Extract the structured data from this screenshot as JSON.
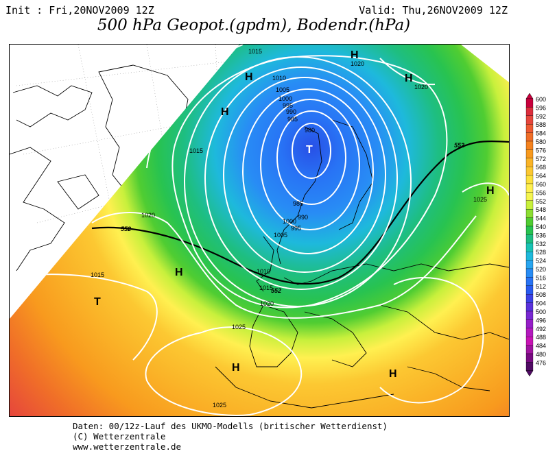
{
  "header": {
    "init": "Init : Fri,20NOV2009 12Z",
    "valid": "Valid: Thu,26NOV2009 12Z",
    "title": "500 hPa Geopot.(gpdm), Bodendr.(hPa)"
  },
  "footer": {
    "line1": "Daten: 00/12z-Lauf des UKMO-Modells (britischer Wetterdienst)",
    "line2": "(C) Wetterzentrale",
    "line3": "www.wetterzentrale.de"
  },
  "legend": {
    "levels": [
      "600",
      "596",
      "592",
      "588",
      "584",
      "580",
      "576",
      "572",
      "568",
      "564",
      "560",
      "556",
      "552",
      "548",
      "544",
      "540",
      "536",
      "532",
      "528",
      "524",
      "520",
      "516",
      "512",
      "508",
      "504",
      "500",
      "496",
      "492",
      "488",
      "484",
      "480",
      "476"
    ],
    "colors": [
      "#c8003c",
      "#dc2d3c",
      "#e6463c",
      "#ee5a32",
      "#f06e28",
      "#f5821e",
      "#f89a1e",
      "#fab428",
      "#fcc832",
      "#fde13c",
      "#fff050",
      "#f5f550",
      "#c8f03c",
      "#8cde32",
      "#50cd32",
      "#28c350",
      "#1ebe82",
      "#19c3b4",
      "#1eb9dc",
      "#28a5f0",
      "#288cf5",
      "#2873f5",
      "#285af0",
      "#3c41e6",
      "#5a32dc",
      "#7828d2",
      "#961ec8",
      "#b419be",
      "#c814b4",
      "#a014a0",
      "#780a82",
      "#500a64"
    ]
  },
  "map": {
    "highs": [
      "H",
      "H",
      "H",
      "H",
      "H",
      "H",
      "H",
      "H"
    ],
    "lows": [
      "T",
      "T"
    ],
    "pressure_labels": [
      "1015",
      "1020",
      "1020",
      "1010",
      "1005",
      "1000",
      "995",
      "990",
      "985",
      "980",
      "1015",
      "1020",
      "985",
      "990",
      "995",
      "1000",
      "1005",
      "1010",
      "1015",
      "1020",
      "1015",
      "1025",
      "1025",
      "1025"
    ],
    "geopot_labels": [
      "552",
      "552",
      "552"
    ]
  }
}
